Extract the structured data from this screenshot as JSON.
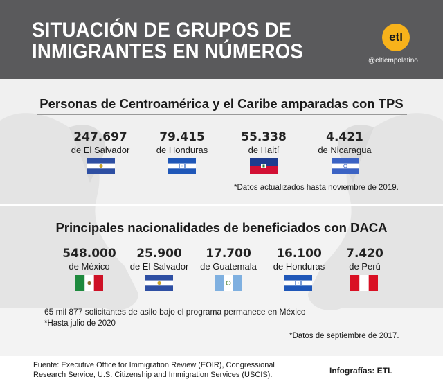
{
  "header": {
    "title_line1": "SITUACIÓN DE GRUPOS DE",
    "title_line2": "INMIGRANTES EN NÚMEROS",
    "logo_text": "etl",
    "handle": "@eltiempolatino"
  },
  "tps": {
    "title": "Personas de Centroamérica y el Caribe amparadas con TPS",
    "items": [
      {
        "number": "247.697",
        "label": "de El Salvador",
        "flag": "el-salvador"
      },
      {
        "number": "79.415",
        "label": "de Honduras",
        "flag": "honduras"
      },
      {
        "number": "55.338",
        "label": "de Haití",
        "flag": "haiti"
      },
      {
        "number": "4.421",
        "label": "de Nicaragua",
        "flag": "nicaragua"
      }
    ],
    "note": "*Datos actualizados hasta noviembre de 2019."
  },
  "daca": {
    "title": "Principales nacionalidades de beneficiados con DACA",
    "items": [
      {
        "number": "548.000",
        "label": "de México",
        "flag": "mexico"
      },
      {
        "number": "25.900",
        "label": "de El Salvador",
        "flag": "el-salvador"
      },
      {
        "number": "17.700",
        "label": "de Guatemala",
        "flag": "guatemala"
      },
      {
        "number": "16.100",
        "label": "de Honduras",
        "flag": "honduras"
      },
      {
        "number": "7.420",
        "label": "de Perú",
        "flag": "peru"
      }
    ],
    "asylum_note": "65 mil 877 solicitantes de asilo bajo el programa permanece en México",
    "asylum_date": "*Hasta julio de 2020",
    "note": "*Datos de septiembre de 2017."
  },
  "footer": {
    "source_line1": "Fuente: Executive Office for Immigration Review (EOIR), Congressional",
    "source_line2": "Research Service, U.S. Citizenship and Immigration Services (USCIS).",
    "credit": "Infografías: ETL"
  },
  "colors": {
    "header_bg": "#5a5a5c",
    "logo": "#f7b21b",
    "flag_blue": "#2e4fa3",
    "honduras_blue": "#1f57b8",
    "nicaragua_blue": "#3b63c4",
    "guatemala_blue": "#7fb0e0",
    "mexico_green": "#1e8a3e",
    "mexico_red": "#ce1126",
    "peru_red": "#d91023",
    "haiti_blue": "#1d3c8f",
    "haiti_red": "#d21034"
  }
}
